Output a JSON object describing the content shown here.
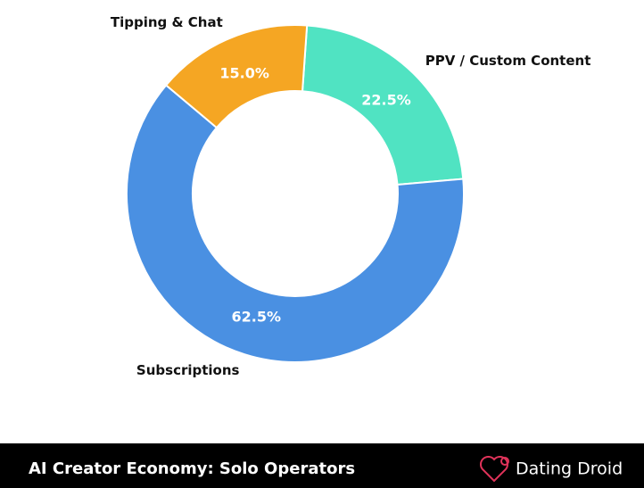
{
  "chart_data": {
    "type": "donut",
    "categories": [
      "PPV / Custom Content",
      "Subscriptions",
      "Tipping & Chat"
    ],
    "values": [
      22.5,
      62.5,
      15.0
    ],
    "value_labels": [
      "22.5%",
      "62.5%",
      "15.0%"
    ],
    "colors": [
      "#50e3c2",
      "#4a90e2",
      "#f5a623"
    ]
  },
  "banner": {
    "title": "AI Creator Economy: Solo Operators",
    "brand": "Dating Droid"
  }
}
